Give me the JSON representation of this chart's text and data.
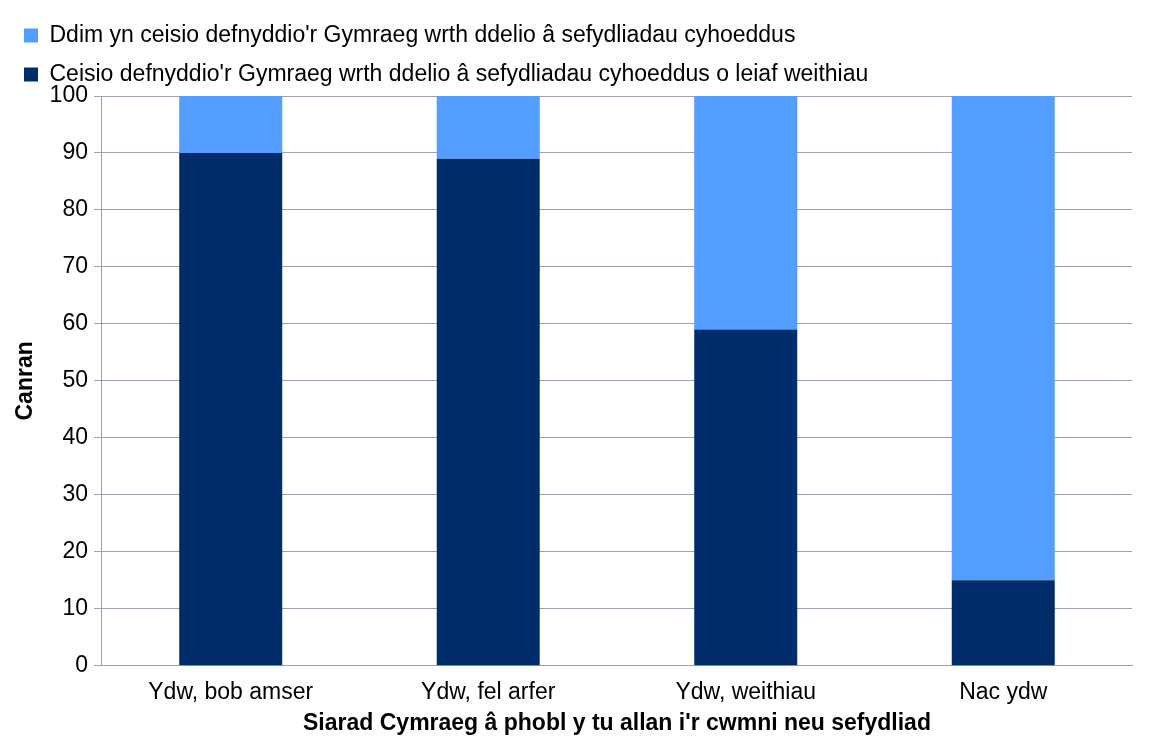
{
  "chart_data": {
    "type": "bar",
    "stacked": true,
    "xlabel": "Siarad Cymraeg â phobl y tu allan i'r cwmni neu sefydliad",
    "ylabel": "Canran",
    "categories": [
      "Ydw, bob amser",
      "Ydw, fel arfer",
      "Ydw, weithiau",
      "Nac ydw"
    ],
    "series": [
      {
        "name": "Ceisio defnyddio'r Gymraeg wrth ddelio â sefydliadau cyhoeddus o leiaf weithiau",
        "color": "#002d6a",
        "values": [
          90,
          89,
          59,
          15
        ]
      },
      {
        "name": "Ddim yn ceisio defnyddio'r Gymraeg wrth ddelio â sefydliadau cyhoeddus",
        "color": "#529dff",
        "values": [
          10,
          11,
          41,
          85
        ]
      }
    ],
    "ylim": [
      0,
      100
    ],
    "yticks": [
      0,
      10,
      20,
      30,
      40,
      50,
      60,
      70,
      80,
      90,
      100
    ],
    "grid": "y",
    "legend": "top left"
  }
}
